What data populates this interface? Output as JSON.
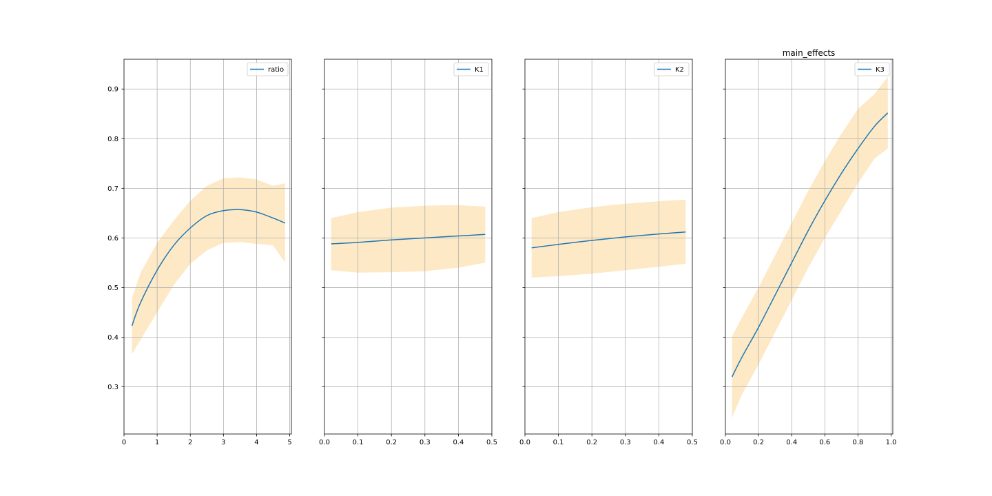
{
  "figure": {
    "title": "main_effects"
  },
  "chart_data": [
    {
      "type": "line",
      "series": [
        {
          "name": "ratio"
        }
      ],
      "legend": "top-right",
      "grid": true,
      "xlim": [
        0,
        5.05
      ],
      "ylim": [
        0.205,
        0.96
      ],
      "xticks": [
        0,
        1,
        2,
        3,
        4,
        5
      ],
      "xtick_labels": [
        "0",
        "1",
        "2",
        "3",
        "4",
        "5"
      ],
      "yticks": [
        0.3,
        0.4,
        0.5,
        0.6,
        0.7,
        0.8,
        0.9
      ],
      "ytick_labels": [
        "0.3",
        "0.4",
        "0.5",
        "0.6",
        "0.7",
        "0.8",
        "0.9"
      ],
      "x": [
        0.24,
        0.5,
        1.0,
        1.5,
        2.0,
        2.5,
        3.0,
        3.5,
        4.0,
        4.5,
        4.86
      ],
      "y": [
        0.423,
        0.47,
        0.535,
        0.585,
        0.62,
        0.645,
        0.655,
        0.657,
        0.652,
        0.64,
        0.63
      ],
      "lower": [
        0.366,
        0.395,
        0.45,
        0.505,
        0.548,
        0.575,
        0.59,
        0.592,
        0.588,
        0.585,
        0.55
      ],
      "upper": [
        0.479,
        0.53,
        0.59,
        0.635,
        0.675,
        0.705,
        0.72,
        0.722,
        0.718,
        0.705,
        0.71
      ]
    },
    {
      "type": "line",
      "series": [
        {
          "name": "K1"
        }
      ],
      "legend": "top-right",
      "grid": true,
      "xlim": [
        0,
        0.5
      ],
      "ylim": [
        0.205,
        0.96
      ],
      "xticks": [
        0.0,
        0.1,
        0.2,
        0.3,
        0.4,
        0.5
      ],
      "xtick_labels": [
        "0.0",
        "0.1",
        "0.2",
        "0.3",
        "0.4",
        "0.5"
      ],
      "yticks": [
        0.3,
        0.4,
        0.5,
        0.6,
        0.7,
        0.8,
        0.9
      ],
      "x": [
        0.02,
        0.1,
        0.2,
        0.3,
        0.4,
        0.48
      ],
      "y": [
        0.588,
        0.591,
        0.596,
        0.6,
        0.604,
        0.607
      ],
      "lower": [
        0.535,
        0.53,
        0.531,
        0.533,
        0.54,
        0.55
      ],
      "upper": [
        0.64,
        0.652,
        0.661,
        0.665,
        0.666,
        0.663
      ]
    },
    {
      "type": "line",
      "series": [
        {
          "name": "K2"
        }
      ],
      "legend": "top-right",
      "grid": true,
      "xlim": [
        0,
        0.5
      ],
      "ylim": [
        0.205,
        0.96
      ],
      "xticks": [
        0.0,
        0.1,
        0.2,
        0.3,
        0.4,
        0.5
      ],
      "xtick_labels": [
        "0.0",
        "0.1",
        "0.2",
        "0.3",
        "0.4",
        "0.5"
      ],
      "yticks": [
        0.3,
        0.4,
        0.5,
        0.6,
        0.7,
        0.8,
        0.9
      ],
      "x": [
        0.02,
        0.1,
        0.2,
        0.3,
        0.4,
        0.48
      ],
      "y": [
        0.58,
        0.587,
        0.595,
        0.602,
        0.608,
        0.612
      ],
      "lower": [
        0.52,
        0.523,
        0.528,
        0.535,
        0.542,
        0.548
      ],
      "upper": [
        0.64,
        0.652,
        0.662,
        0.669,
        0.674,
        0.677
      ]
    },
    {
      "type": "line",
      "series": [
        {
          "name": "K3"
        }
      ],
      "legend": "top-right",
      "grid": true,
      "xlim": [
        0,
        1.01
      ],
      "ylim": [
        0.205,
        0.96
      ],
      "xticks": [
        0.0,
        0.2,
        0.4,
        0.6,
        0.8,
        1.0
      ],
      "xtick_labels": [
        "0.0",
        "0.2",
        "0.4",
        "0.6",
        "0.8",
        "1.0"
      ],
      "yticks": [
        0.3,
        0.4,
        0.5,
        0.6,
        0.7,
        0.8,
        0.9
      ],
      "x": [
        0.04,
        0.1,
        0.2,
        0.3,
        0.4,
        0.5,
        0.6,
        0.7,
        0.8,
        0.9,
        0.98
      ],
      "y": [
        0.32,
        0.36,
        0.42,
        0.485,
        0.55,
        0.615,
        0.675,
        0.73,
        0.78,
        0.825,
        0.852
      ],
      "lower": [
        0.238,
        0.285,
        0.345,
        0.41,
        0.475,
        0.54,
        0.6,
        0.655,
        0.71,
        0.76,
        0.78
      ],
      "upper": [
        0.402,
        0.44,
        0.5,
        0.565,
        0.63,
        0.695,
        0.755,
        0.81,
        0.86,
        0.89,
        0.925
      ]
    }
  ]
}
